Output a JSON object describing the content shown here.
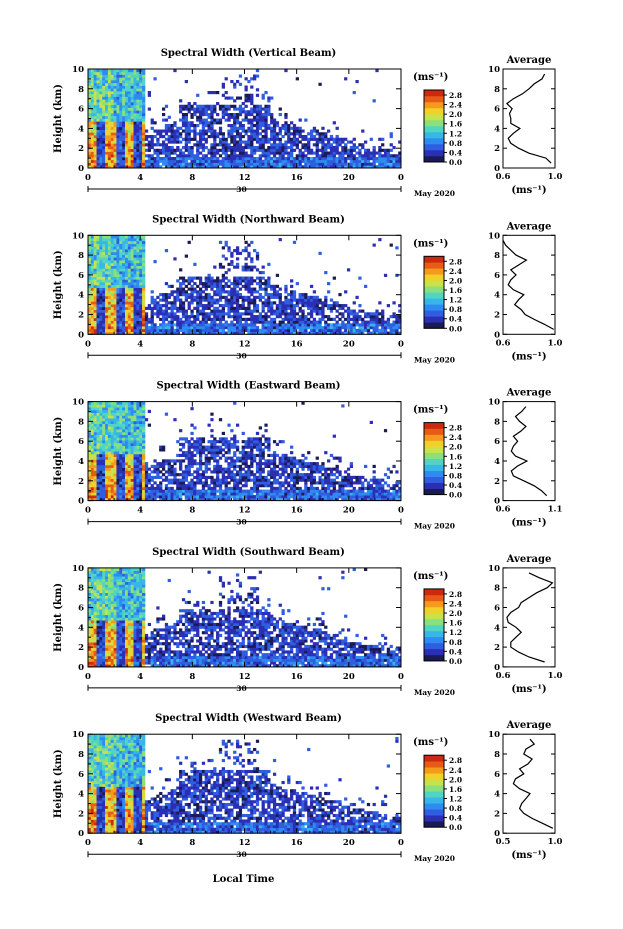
{
  "figure": {
    "x_axis_title": "Local Time",
    "colorbar_ticks": [
      "0.0",
      "0.4",
      "0.8",
      "1.2",
      "1.6",
      "2.0",
      "2.4",
      "2.8"
    ],
    "colormap": [
      "#1a1a55",
      "#2b2fb3",
      "#2f5fe0",
      "#2e8cf0",
      "#39b6e8",
      "#52d4c2",
      "#8ae07c",
      "#c7e24a",
      "#f2d02a",
      "#f59a1d",
      "#e85b17",
      "#cc2a10"
    ]
  },
  "chart_data": [
    {
      "type": "heatmap",
      "title": "Spectral Width (Vertical Beam)",
      "ylabel": "Height (km)",
      "yticks": [
        "0",
        "2",
        "4",
        "6",
        "8",
        "10"
      ],
      "xticks": [
        "0",
        "4",
        "8",
        "12",
        "16",
        "20",
        "0"
      ],
      "date_tick": "30",
      "month_label": "May 2020",
      "colorbar_unit": "(ms⁻¹)",
      "colorbar_ticks": [
        "0.0",
        "0.4",
        "0.8",
        "1.2",
        "1.6",
        "2.0",
        "2.4",
        "2.8"
      ],
      "xlim": [
        0,
        24
      ],
      "ylim": [
        0,
        10
      ],
      "zlim": [
        0,
        3.0
      ],
      "profile": {
        "title": "Average",
        "xlabel": "(ms⁻¹)",
        "xticks": [
          "0.6",
          "1.0"
        ],
        "xlim": [
          0.6,
          1.0
        ],
        "yticks": [
          "0",
          "2",
          "4",
          "6",
          "8",
          "10"
        ],
        "heights": [
          0.5,
          1,
          1.5,
          2,
          2.5,
          3,
          3.5,
          4,
          4.5,
          5,
          5.5,
          6,
          6.5,
          7,
          7.5,
          8,
          8.5,
          9,
          9.5
        ],
        "values": [
          0.97,
          0.93,
          0.8,
          0.72,
          0.66,
          0.64,
          0.68,
          0.73,
          0.66,
          0.66,
          0.65,
          0.67,
          0.63,
          0.68,
          0.75,
          0.8,
          0.84,
          0.9,
          0.92
        ]
      }
    },
    {
      "type": "heatmap",
      "title": "Spectral Width (Northward Beam)",
      "ylabel": "Height (km)",
      "yticks": [
        "0",
        "2",
        "4",
        "6",
        "8",
        "10"
      ],
      "xticks": [
        "0",
        "4",
        "8",
        "12",
        "16",
        "20",
        "0"
      ],
      "date_tick": "30",
      "month_label": "May 2020",
      "colorbar_unit": "(ms⁻¹)",
      "colorbar_ticks": [
        "0.0",
        "0.4",
        "0.8",
        "1.2",
        "1.6",
        "2.0",
        "2.4",
        "2.8"
      ],
      "xlim": [
        0,
        24
      ],
      "ylim": [
        0,
        10
      ],
      "zlim": [
        0,
        3.0
      ],
      "profile": {
        "title": "Average",
        "xlabel": "(ms⁻¹)",
        "xticks": [
          "0.6",
          "1.0"
        ],
        "xlim": [
          0.6,
          1.0
        ],
        "yticks": [
          "0",
          "2",
          "4",
          "6",
          "8",
          "10"
        ],
        "heights": [
          0.5,
          1,
          1.5,
          2,
          2.5,
          3,
          3.5,
          4,
          4.5,
          5,
          5.5,
          6,
          6.5,
          7,
          7.5,
          8,
          8.5,
          9,
          9.5
        ],
        "values": [
          0.99,
          0.92,
          0.84,
          0.77,
          0.74,
          0.69,
          0.72,
          0.76,
          0.68,
          0.64,
          0.66,
          0.7,
          0.66,
          0.72,
          0.78,
          0.7,
          0.66,
          0.62,
          0.6
        ]
      }
    },
    {
      "type": "heatmap",
      "title": "Spectral Width (Eastward Beam)",
      "ylabel": "Height (km)",
      "yticks": [
        "0",
        "2",
        "4",
        "6",
        "8",
        "10"
      ],
      "xticks": [
        "0",
        "4",
        "8",
        "12",
        "16",
        "20",
        "0"
      ],
      "date_tick": "30",
      "month_label": "May 2020",
      "colorbar_unit": "(ms⁻¹)",
      "colorbar_ticks": [
        "0.0",
        "0.4",
        "0.8",
        "1.2",
        "1.6",
        "2.0",
        "2.4",
        "2.8"
      ],
      "xlim": [
        0,
        24
      ],
      "ylim": [
        0,
        10
      ],
      "zlim": [
        0,
        3.0
      ],
      "profile": {
        "title": "Average",
        "xlabel": "(ms⁻¹)",
        "xticks": [
          "0.6",
          "1.1"
        ],
        "xlim": [
          0.6,
          1.1
        ],
        "yticks": [
          "0",
          "2",
          "4",
          "6",
          "8",
          "10"
        ],
        "heights": [
          0.5,
          1,
          1.5,
          2,
          2.5,
          3,
          3.5,
          4,
          4.5,
          5,
          5.5,
          6,
          6.5,
          7,
          7.5,
          8,
          8.5,
          9,
          9.5
        ],
        "values": [
          1.02,
          0.97,
          0.9,
          0.8,
          0.7,
          0.68,
          0.74,
          0.83,
          0.72,
          0.68,
          0.7,
          0.74,
          0.7,
          0.77,
          0.82,
          0.76,
          0.72,
          0.78,
          0.82
        ]
      }
    },
    {
      "type": "heatmap",
      "title": "Spectral Width (Southward Beam)",
      "ylabel": "Height (km)",
      "yticks": [
        "0",
        "2",
        "4",
        "6",
        "8",
        "10"
      ],
      "xticks": [
        "0",
        "4",
        "8",
        "12",
        "16",
        "20",
        "0"
      ],
      "date_tick": "30",
      "month_label": "May 2020",
      "colorbar_unit": "(ms⁻¹)",
      "colorbar_ticks": [
        "0.0",
        "0.4",
        "0.8",
        "1.2",
        "1.6",
        "2.0",
        "2.4",
        "2.8"
      ],
      "xlim": [
        0,
        24
      ],
      "ylim": [
        0,
        10
      ],
      "zlim": [
        0,
        3.0
      ],
      "profile": {
        "title": "Average",
        "xlabel": "(ms⁻¹)",
        "xticks": [
          "0.6",
          "1.0"
        ],
        "xlim": [
          0.6,
          1.0
        ],
        "yticks": [
          "0",
          "2",
          "4",
          "6",
          "8",
          "10"
        ],
        "heights": [
          0.5,
          1,
          1.5,
          2,
          2.5,
          3,
          3.5,
          4,
          4.5,
          5,
          5.5,
          6,
          6.5,
          7,
          7.5,
          8,
          8.5,
          9,
          9.5
        ],
        "values": [
          0.92,
          0.8,
          0.72,
          0.66,
          0.66,
          0.7,
          0.74,
          0.7,
          0.64,
          0.63,
          0.66,
          0.72,
          0.74,
          0.8,
          0.86,
          0.94,
          0.98,
          0.88,
          0.8
        ]
      }
    },
    {
      "type": "heatmap",
      "title": "Spectral Width (Westward Beam)",
      "ylabel": "Height (km)",
      "yticks": [
        "0",
        "2",
        "4",
        "6",
        "8",
        "10"
      ],
      "xticks": [
        "0",
        "4",
        "8",
        "12",
        "16",
        "20",
        "0"
      ],
      "date_tick": "30",
      "month_label": "May 2020",
      "colorbar_unit": "(ms⁻¹)",
      "colorbar_ticks": [
        "0.0",
        "0.4",
        "0.8",
        "1.2",
        "1.6",
        "2.0",
        "2.4",
        "2.8"
      ],
      "xlim": [
        0,
        24
      ],
      "ylim": [
        0,
        10
      ],
      "zlim": [
        0,
        3.0
      ],
      "profile": {
        "title": "Average",
        "xlabel": "(ms⁻¹)",
        "xticks": [
          "0.5",
          "1.0"
        ],
        "xlim": [
          0.5,
          1.0
        ],
        "yticks": [
          "0",
          "2",
          "4",
          "6",
          "8",
          "10"
        ],
        "heights": [
          0.5,
          1,
          1.5,
          2,
          2.5,
          3,
          3.5,
          4,
          4.5,
          5,
          5.5,
          6,
          6.5,
          7,
          7.5,
          8,
          8.5,
          9,
          9.5
        ],
        "values": [
          0.98,
          0.88,
          0.78,
          0.7,
          0.66,
          0.68,
          0.72,
          0.76,
          0.66,
          0.6,
          0.62,
          0.7,
          0.66,
          0.74,
          0.78,
          0.7,
          0.72,
          0.8,
          0.76
        ]
      }
    }
  ]
}
